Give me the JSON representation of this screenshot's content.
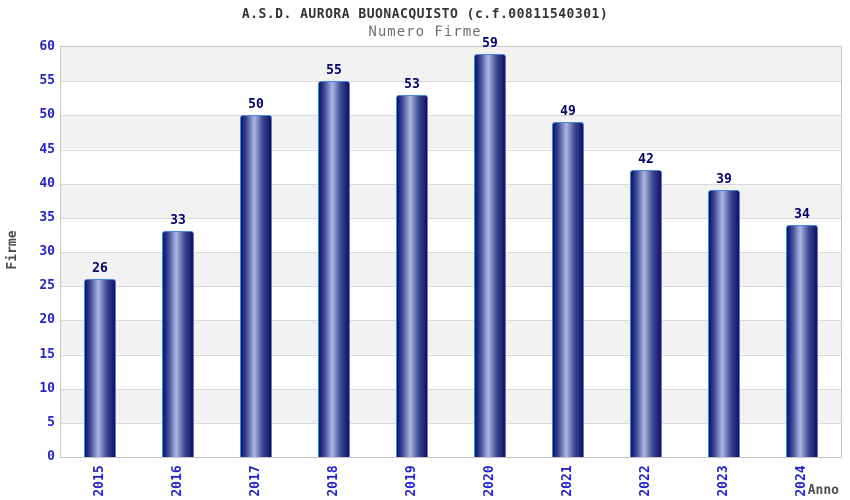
{
  "header": {
    "title": "A.S.D. AURORA BUONACQUISTO (c.f.00811540301)",
    "subtitle": "Numero Firme"
  },
  "chart_data": {
    "type": "bar",
    "title": "A.S.D. AURORA BUONACQUISTO (c.f.00811540301)",
    "subtitle": "Numero Firme",
    "xlabel": "Anno",
    "ylabel": "Firme",
    "categories": [
      "2015",
      "2016",
      "2017",
      "2018",
      "2019",
      "2020",
      "2021",
      "2022",
      "2023",
      "2024"
    ],
    "values": [
      26,
      33,
      50,
      55,
      53,
      59,
      49,
      42,
      39,
      34
    ],
    "ylim": [
      0,
      60
    ],
    "ytick_step": 5,
    "yticks": [
      0,
      5,
      10,
      15,
      20,
      25,
      30,
      35,
      40,
      45,
      50,
      55,
      60
    ],
    "grid": true,
    "bands": true,
    "legend": "none"
  },
  "colors": {
    "title": "#333333",
    "subtitle": "#707070",
    "axis_label": "#4d4d4d",
    "tick_label": "#2424cc",
    "value_label": "#00006e",
    "bar_border": "#4a86e0",
    "bar_dark": "#10125f",
    "bar_mid": "#3c4a97",
    "bar_light": "#aeb6e2",
    "band_gray": "#f2f2f2",
    "band_white": "#ffffff",
    "gridline": "#d9d9d9",
    "plot_border": "#c6c6c6"
  }
}
